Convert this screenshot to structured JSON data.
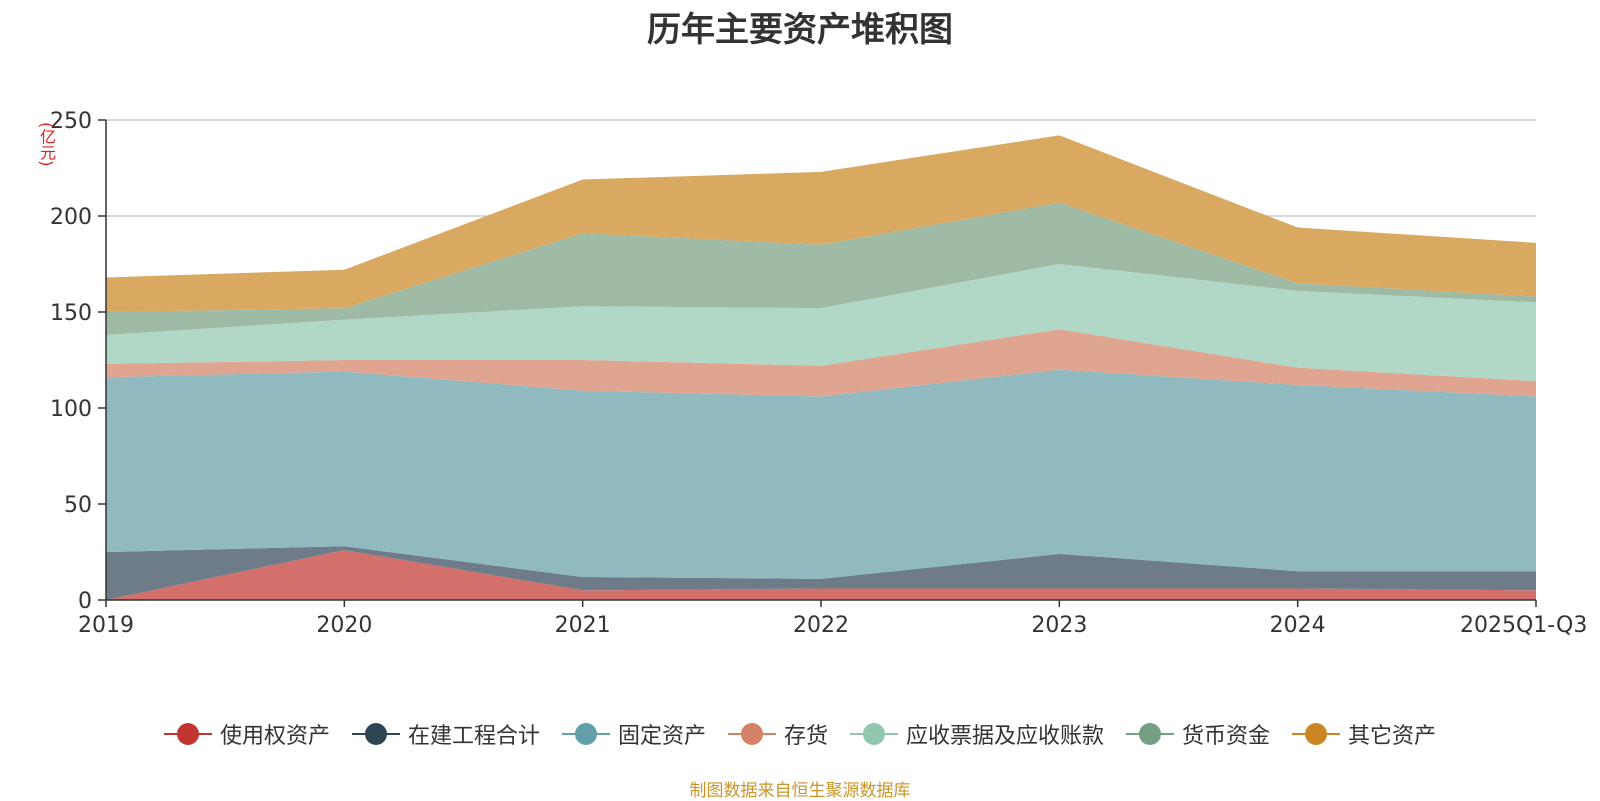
{
  "chart_data": {
    "type": "area",
    "stacked": true,
    "title": "历年主要资产堆积图",
    "ylabel": "(亿元)",
    "xlabel": "",
    "ylim": [
      0,
      250
    ],
    "yticks": [
      0,
      50,
      100,
      150,
      200,
      250
    ],
    "categories": [
      "2019",
      "2020",
      "2021",
      "2022",
      "2023",
      "2024",
      "2025Q1-Q3"
    ],
    "series": [
      {
        "name": "使用权资产",
        "color": "#c23531",
        "fill": "#d4706c",
        "values": [
          0,
          26,
          5,
          6,
          6,
          6,
          5
        ]
      },
      {
        "name": "在建工程合计",
        "color": "#2f4554",
        "fill": "#6d7c88",
        "values": [
          25,
          2,
          7,
          5,
          18,
          9,
          10
        ]
      },
      {
        "name": "固定资产",
        "color": "#61a0a8",
        "fill": "#90b9c0",
        "values": [
          91,
          91,
          97,
          95,
          96,
          97,
          91
        ]
      },
      {
        "name": "存货",
        "color": "#d48265",
        "fill": "#e0a591",
        "values": [
          7,
          6,
          16,
          16,
          21,
          9,
          8
        ]
      },
      {
        "name": "应收票据及应收账款",
        "color": "#91c7ae",
        "fill": "#b1d8c6",
        "values": [
          15,
          21,
          28,
          30,
          34,
          40,
          41
        ]
      },
      {
        "name": "货币资金",
        "color": "#749f83",
        "fill": "#9eb9a4",
        "values": [
          12,
          6,
          38,
          33,
          32,
          4,
          3
        ]
      },
      {
        "name": "其它资产",
        "color": "#ca8622",
        "fill": "#d9a962",
        "values": [
          18,
          20,
          28,
          38,
          35,
          29,
          28
        ]
      }
    ]
  },
  "legend_items": [
    {
      "name": "使用权资产",
      "color": "#c23531"
    },
    {
      "name": "在建工程合计",
      "color": "#2f4554"
    },
    {
      "name": "固定资产",
      "color": "#61a0a8"
    },
    {
      "name": "存货",
      "color": "#d48265"
    },
    {
      "name": "应收票据及应收账款",
      "color": "#91c7ae"
    },
    {
      "name": "货币资金",
      "color": "#749f83"
    },
    {
      "name": "其它资产",
      "color": "#ca8622"
    }
  ],
  "footer": "制图数据来自恒生聚源数据库"
}
